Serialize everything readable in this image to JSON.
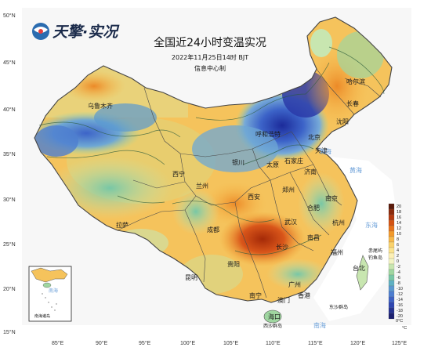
{
  "brand": {
    "name": "天擎·实况"
  },
  "title": {
    "main": "全国近24小时变温实况",
    "time": "2022年11月25日14时 BJT",
    "source": "信息中心制"
  },
  "lat_labels": [
    "50°N",
    "45°N",
    "40°N",
    "35°N",
    "30°N",
    "25°N",
    "20°N",
    "15°N"
  ],
  "lon_labels": [
    "85°E",
    "90°E",
    "95°E",
    "100°E",
    "105°E",
    "110°E",
    "115°E",
    "120°E",
    "125°E"
  ],
  "cities": [
    {
      "name": "哈尔滨"
    },
    {
      "name": "长春"
    },
    {
      "name": "沈阳"
    },
    {
      "name": "呼和浩特"
    },
    {
      "name": "北京"
    },
    {
      "name": "天津"
    },
    {
      "name": "太原"
    },
    {
      "name": "石家庄"
    },
    {
      "name": "济南"
    },
    {
      "name": "银川"
    },
    {
      "name": "乌鲁木齐"
    },
    {
      "name": "西宁"
    },
    {
      "name": "兰州"
    },
    {
      "name": "郑州"
    },
    {
      "name": "西安"
    },
    {
      "name": "合肥"
    },
    {
      "name": "南京"
    },
    {
      "name": "武汉"
    },
    {
      "name": "杭州"
    },
    {
      "name": "成都"
    },
    {
      "name": "长沙"
    },
    {
      "name": "南昌"
    },
    {
      "name": "福州"
    },
    {
      "name": "贵阳"
    },
    {
      "name": "昆明"
    },
    {
      "name": "广州"
    },
    {
      "name": "南宁"
    },
    {
      "name": "海口"
    },
    {
      "name": "台北"
    },
    {
      "name": "拉萨"
    },
    {
      "name": "香港"
    },
    {
      "name": "澳门"
    }
  ],
  "seas": [
    {
      "name": "渤海"
    },
    {
      "name": "黄海"
    },
    {
      "name": "东海"
    },
    {
      "name": "南海"
    },
    {
      "name": "赤尾屿"
    },
    {
      "name": "钓鱼岛"
    },
    {
      "name": "东沙群岛"
    },
    {
      "name": "西沙群岛"
    }
  ],
  "inset": {
    "label_sea": "南海",
    "label_islands": "南海诸岛"
  },
  "legend": {
    "unit": "°C",
    "zero_label": "0°C",
    "ticks": [
      "20",
      "18",
      "16",
      "14",
      "12",
      "10",
      "8",
      "6",
      "4",
      "2",
      "0",
      "-2",
      "-4",
      "-6",
      "-8",
      "-10",
      "-12",
      "-14",
      "-16",
      "-18",
      "-20"
    ],
    "colors": [
      "#5a1a0a",
      "#8b2a0c",
      "#b43a10",
      "#d45414",
      "#e8741c",
      "#f29a2c",
      "#f7b84a",
      "#fad26c",
      "#fbe38e",
      "#fdf0b4",
      "#f3f4c4",
      "#c8e6b0",
      "#9fd6a0",
      "#78c7a6",
      "#5fb0c2",
      "#5a98d0",
      "#4e7ed0",
      "#3e62c4",
      "#2f46b0",
      "#253290",
      "#1c2070"
    ]
  }
}
